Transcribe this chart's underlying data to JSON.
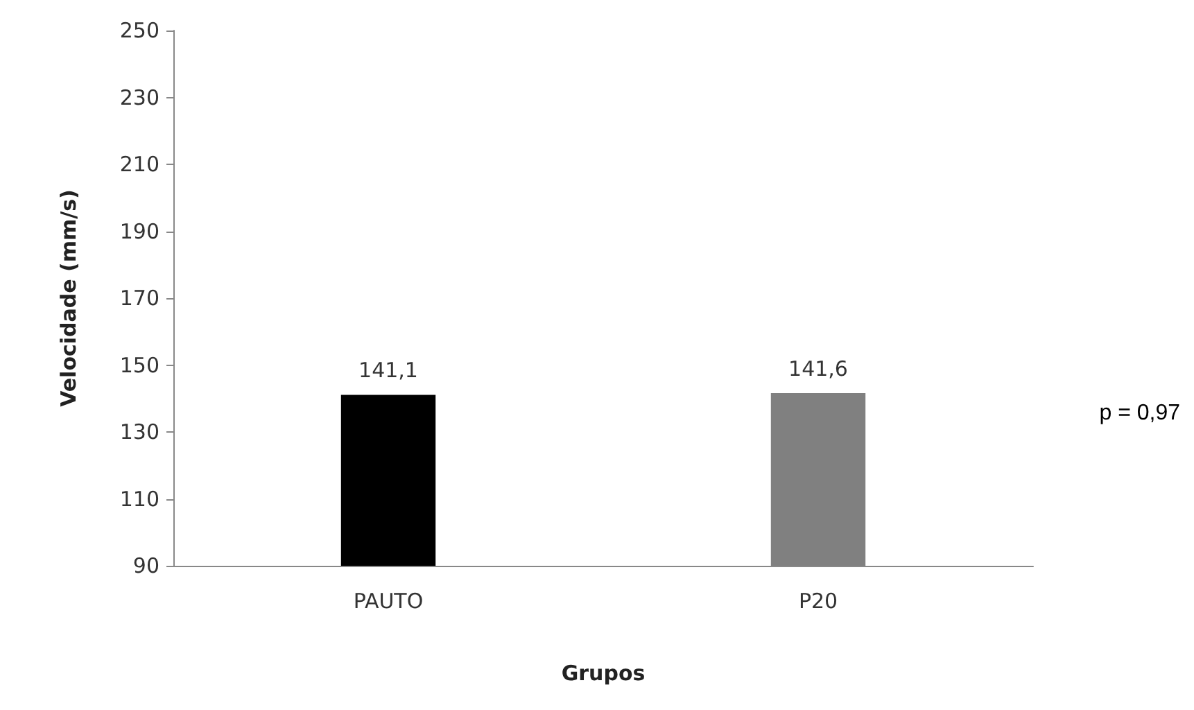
{
  "chart_data": {
    "type": "bar",
    "xlabel": "Grupos",
    "ylabel": "Velocidade (mm/s)",
    "categories": [
      "PAUTO",
      "P20"
    ],
    "values": [
      141.1,
      141.6
    ],
    "colors": [
      "#000000",
      "#808080"
    ],
    "value_labels": [
      "141,1",
      "141,6"
    ],
    "ylim": [
      90,
      250
    ],
    "yticks": [
      90,
      110,
      130,
      150,
      170,
      190,
      210,
      230,
      250
    ],
    "annotations": [
      "p = 0,97"
    ],
    "grid": false
  }
}
